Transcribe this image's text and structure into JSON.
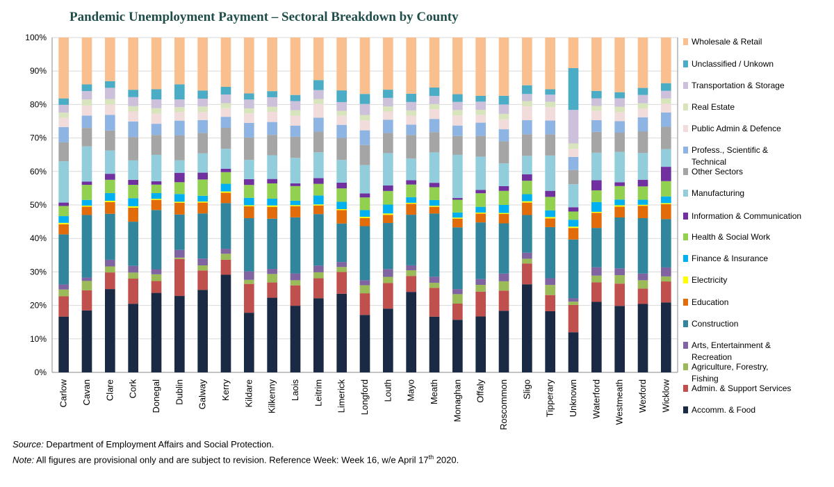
{
  "chart_data": {
    "type": "bar",
    "stacked": true,
    "title": "Pandemic Unemployment Payment – Sectoral Breakdown by County",
    "xlabel": "",
    "ylabel": "",
    "ylim": [
      0,
      100
    ],
    "yticks": [
      "0%",
      "10%",
      "20%",
      "30%",
      "40%",
      "50%",
      "60%",
      "70%",
      "80%",
      "90%",
      "100%"
    ],
    "grid": true,
    "legend_position": "right",
    "categories": [
      "Carlow",
      "Cavan",
      "Clare",
      "Cork",
      "Donegal",
      "Dublin",
      "Galway",
      "Kerry",
      "Kildare",
      "Kilkenny",
      "Laois",
      "Leitrim",
      "Limerick",
      "Longford",
      "Louth",
      "Mayo",
      "Meath",
      "Monaghan",
      "Offaly",
      "Roscommon",
      "Sligo",
      "Tipperary",
      "Unknown",
      "Waterford",
      "Westmeath",
      "Wexford",
      "Wicklow"
    ],
    "series": [
      {
        "name": "Accomm. & Food",
        "color": "#1a2a44",
        "values": [
          16.5,
          18.5,
          25,
          20.5,
          23.5,
          22.7,
          24.3,
          29.3,
          17.6,
          22,
          19.6,
          22.3,
          23.5,
          17.2,
          18.7,
          24.2,
          16.5,
          15.6,
          16.5,
          18.4,
          26.2,
          18.2,
          12.2,
          21,
          19.7,
          20.5,
          21
        ]
      },
      {
        "name": "Admin. & Support Services",
        "color": "#c0504d",
        "values": [
          6,
          6,
          5,
          7.5,
          3.5,
          11,
          5.7,
          4.5,
          8.5,
          4.5,
          6,
          6,
          6.5,
          6.5,
          7.5,
          4.8,
          8.5,
          4.8,
          7.3,
          6,
          6.2,
          4.8,
          8.3,
          5.8,
          6.6,
          4.6,
          6.3
        ]
      },
      {
        "name": "Agriculture, Forestry, Fishing",
        "color": "#9bbb59",
        "values": [
          2,
          2.8,
          1.8,
          1.8,
          2,
          0.4,
          1.5,
          1.8,
          1.2,
          2.5,
          1.5,
          1.8,
          1.5,
          2.4,
          1.8,
          1.7,
          1.5,
          2.8,
          2,
          2.8,
          1.4,
          3,
          1,
          2,
          2.5,
          2.5,
          1.5
        ]
      },
      {
        "name": "Arts, Entertainment & Recreation",
        "color": "#8064a2",
        "values": [
          1.5,
          1,
          2,
          2,
          1.5,
          2.3,
          2,
          1.5,
          2.5,
          1.5,
          2,
          2,
          1.5,
          1.5,
          2.3,
          1.5,
          1.8,
          1.5,
          1.7,
          2.3,
          1.8,
          2,
          1,
          2.5,
          2,
          2,
          2.7
        ]
      },
      {
        "name": "Construction",
        "color": "#31859c",
        "values": [
          14.8,
          18.7,
          13.8,
          13.2,
          17.5,
          10.5,
          13.3,
          13.7,
          15.7,
          14.8,
          16.5,
          15.5,
          11.5,
          16.2,
          13.5,
          15.2,
          18.7,
          18.3,
          16.7,
          15,
          11.2,
          15.2,
          17.9,
          11.7,
          15.1,
          16.6,
          14.5
        ]
      },
      {
        "name": "Education",
        "color": "#e36c0a",
        "values": [
          3,
          2.5,
          3.5,
          4.2,
          3,
          3.5,
          3.2,
          3.1,
          3.5,
          3.5,
          3.3,
          2.6,
          4,
          2.4,
          2.4,
          3.3,
          2,
          2.6,
          2.6,
          2.8,
          3.7,
          2.6,
          3.5,
          4.5,
          3.2,
          3.7,
          4.5
        ]
      },
      {
        "name": "Electricity",
        "color": "#ffff00",
        "values": [
          0.4,
          0.3,
          0.4,
          0.4,
          0.3,
          0.3,
          0.3,
          0.4,
          0.3,
          0.4,
          0.3,
          0.3,
          0.3,
          0.4,
          0.4,
          0.3,
          0.3,
          0.3,
          0.3,
          0.3,
          0.4,
          0.4,
          0.4,
          0.3,
          0.4,
          0.3,
          0.3
        ]
      },
      {
        "name": "Finance & Insurance",
        "color": "#00b0f0",
        "values": [
          2,
          1.7,
          2.3,
          2.4,
          1.7,
          2.3,
          1.7,
          2.3,
          2.2,
          2,
          1.3,
          2.7,
          2.2,
          2,
          2.6,
          1.7,
          1.7,
          1.5,
          1.7,
          2.4,
          2.1,
          2,
          2.1,
          2.9,
          1.7,
          1.5,
          2
        ]
      },
      {
        "name": "Health & Social Work",
        "color": "#92d050",
        "values": [
          3,
          4.5,
          4,
          4,
          2.5,
          3.5,
          4.8,
          3.5,
          3.8,
          4.5,
          4.3,
          3.5,
          4,
          3.8,
          4,
          3.8,
          3.8,
          3.8,
          4,
          4.2,
          4,
          4,
          2.5,
          3.5,
          4,
          4,
          4.6
        ]
      },
      {
        "name": "Information & Communication",
        "color": "#7030a0",
        "values": [
          1,
          1,
          1.8,
          1.5,
          1,
          2.8,
          2,
          1,
          1.7,
          1.3,
          0.8,
          1.7,
          1.7,
          1.2,
          1.6,
          1.3,
          1.3,
          0.5,
          1,
          1.4,
          1.9,
          1.8,
          1.3,
          3,
          1.1,
          2,
          4.3
        ]
      },
      {
        "name": "Manufacturing",
        "color": "#92cddc",
        "values": [
          12.2,
          10.5,
          7,
          5.8,
          7.8,
          3.7,
          5.7,
          6,
          5.7,
          7,
          7.5,
          7.8,
          6.8,
          8.5,
          9.5,
          6.5,
          9,
          12.8,
          9.8,
          6.8,
          5.5,
          10.5,
          7,
          8.2,
          9,
          8,
          5.3
        ]
      },
      {
        "name": "Other Sectors",
        "color": "#a5a5a5",
        "values": [
          5.6,
          5.5,
          6,
          7,
          5.9,
          7.4,
          6,
          6.3,
          6.6,
          6,
          6.2,
          6.2,
          6.6,
          6,
          5.9,
          7.1,
          6,
          5.6,
          6.1,
          6.6,
          6.4,
          6.3,
          4.3,
          6.2,
          5.7,
          6.5,
          6.7
        ]
      },
      {
        "name": "Profess., Scientific & Technical",
        "color": "#8db4e2",
        "values": [
          4.5,
          3.7,
          4.7,
          4.6,
          3.3,
          4.4,
          3.8,
          3.3,
          4.3,
          3.8,
          3.3,
          4.2,
          3.9,
          4.4,
          3.9,
          3.1,
          3.9,
          3.1,
          3.9,
          3.6,
          4.2,
          4.1,
          4,
          3.5,
          3.4,
          4.2,
          4.3
        ]
      },
      {
        "name": "Public Admin & Defence",
        "color": "#f2dcdb",
        "values": [
          2.8,
          3,
          3.1,
          3,
          3,
          2.6,
          2.4,
          2.6,
          2.8,
          3,
          2.9,
          4.1,
          2.7,
          3,
          2.4,
          2.7,
          2.9,
          3,
          2.3,
          3,
          4.1,
          4,
          2.5,
          2.8,
          2.7,
          2.6,
          2.6
        ]
      },
      {
        "name": "Real Estate",
        "color": "#d8e4bc",
        "values": [
          1.5,
          1.8,
          1.6,
          1.6,
          1.6,
          1.4,
          1.6,
          1.5,
          1.5,
          1.5,
          1.6,
          1.5,
          1.5,
          1.6,
          1.5,
          1.6,
          1.5,
          1.6,
          1.5,
          1.6,
          1.6,
          1.6,
          1.6,
          1.4,
          1.6,
          1.6,
          1.6
        ]
      },
      {
        "name": "Transportation & Storage",
        "color": "#ccc0da",
        "values": [
          2.3,
          2.5,
          3.4,
          2.7,
          2.6,
          2.3,
          2.3,
          2.6,
          2.6,
          2.8,
          2.7,
          2.7,
          2.6,
          3.3,
          2.5,
          2.5,
          2.4,
          2.4,
          2.4,
          2.8,
          2.1,
          2.1,
          10.2,
          2.3,
          2.5,
          2.5,
          2.3
        ]
      },
      {
        "name": "Unclassified / Unkown",
        "color": "#4bacc6",
        "values": [
          1.9,
          2,
          2,
          2.2,
          3,
          4.5,
          2.4,
          2.3,
          1.8,
          1.8,
          1.8,
          3,
          3.5,
          3,
          2.4,
          2.5,
          2.5,
          2.3,
          1.7,
          2.6,
          2.6,
          1.6,
          12.7,
          2.2,
          1.8,
          2.1,
          2.3
        ]
      },
      {
        "name": "Wholesale & Retail",
        "color": "#fabf8f",
        "values": [
          18,
          14,
          13.1,
          15.6,
          15.3,
          13.9,
          15.6,
          14.8,
          16.5,
          15.8,
          16.9,
          12.8,
          15.8,
          16.9,
          15.3,
          16.9,
          14.8,
          16.8,
          17.2,
          17.4,
          14.2,
          15.4,
          9.3,
          15.9,
          16.2,
          15.1,
          13.7
        ]
      }
    ]
  },
  "footnotes": {
    "source_label": "Source:",
    "source_text": " Department of Employment Affairs and Social Protection.",
    "note_label": "Note:",
    "note_text": " All figures are provisional only and are subject to revision. Reference Week: Week 16, w/e April 17",
    "note_sup": "th",
    "note_end": " 2020."
  }
}
